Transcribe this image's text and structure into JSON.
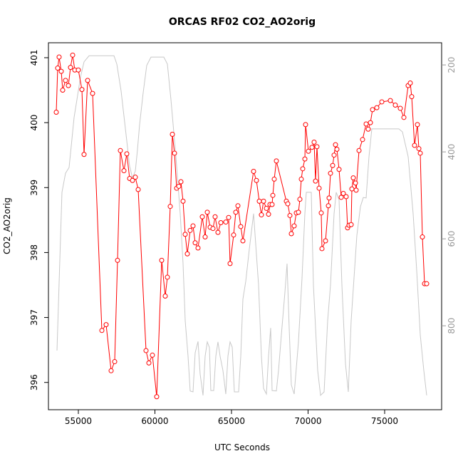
{
  "chart_data": {
    "type": "line",
    "title": "ORCAS RF02 CO2_AO2orig",
    "x_label": "UTC Seconds",
    "y_label": "CO2_AO2orig",
    "xlim": [
      53047,
      78721
    ],
    "xticks": [
      55000,
      60000,
      65000,
      70000,
      75000
    ],
    "ylim": [
      395.58,
      401.23
    ],
    "yticks": [
      396,
      397,
      398,
      399,
      400,
      401
    ],
    "y2lim": [
      993,
      149
    ],
    "y2ticks": [
      200,
      400,
      600,
      800
    ],
    "series": [
      {
        "color": "#ff0000",
        "marker": "circle",
        "x": [
          53558,
          53651,
          53744,
          53884,
          53977,
          54163,
          54349,
          54488,
          54628,
          54767,
          55000,
          55233,
          55372,
          55605,
          55930,
          56535,
          56814,
          57140,
          57372,
          57558,
          57744,
          57977,
          58163,
          58349,
          58535,
          58721,
          58907,
          59419,
          59605,
          59837,
          60116,
          60442,
          60674,
          60814,
          61000,
          61140,
          61279,
          61419,
          61558,
          61698,
          61837,
          61977,
          62116,
          62302,
          62488,
          62628,
          62814,
          63093,
          63279,
          63419,
          63605,
          63791,
          63930,
          64116,
          64302,
          64628,
          64814,
          64907,
          65140,
          65279,
          65419,
          65605,
          65744,
          66442,
          66628,
          66814,
          66953,
          67093,
          67279,
          67419,
          67512,
          67651,
          67698,
          67791,
          67930,
          68581,
          68674,
          68814,
          68907,
          69093,
          69233,
          69372,
          69465,
          69558,
          69651,
          69791,
          69837,
          70023,
          70256,
          70395,
          70488,
          70581,
          70721,
          70860,
          70907,
          71140,
          71326,
          71372,
          71465,
          71605,
          71698,
          71791,
          71884,
          72023,
          72163,
          72302,
          72488,
          72581,
          72674,
          72814,
          72860,
          72953,
          73093,
          73140,
          73326,
          73558,
          73791,
          73930,
          74070,
          74209,
          74488,
          74814,
          75372,
          75698,
          76023,
          76256,
          76535,
          76674,
          76767,
          76953,
          77140,
          77233,
          77326,
          77465,
          77605,
          77744
        ],
        "values": [
          400.16,
          400.84,
          401.01,
          400.79,
          400.5,
          400.65,
          400.57,
          400.85,
          401.04,
          400.81,
          400.81,
          400.51,
          399.51,
          400.65,
          400.45,
          396.8,
          396.89,
          396.18,
          396.32,
          397.88,
          399.57,
          399.26,
          399.52,
          399.14,
          399.11,
          399.16,
          398.97,
          396.49,
          396.3,
          396.42,
          395.78,
          397.88,
          397.33,
          397.62,
          398.71,
          399.82,
          399.53,
          398.99,
          399.02,
          399.09,
          398.79,
          398.28,
          397.98,
          398.34,
          398.41,
          398.15,
          398.07,
          398.55,
          398.24,
          398.62,
          398.39,
          398.37,
          398.55,
          398.31,
          398.46,
          398.47,
          398.54,
          397.83,
          398.27,
          398.62,
          398.72,
          398.4,
          398.18,
          399.25,
          399.11,
          398.79,
          398.58,
          398.79,
          398.68,
          398.59,
          398.74,
          398.74,
          398.88,
          399.13,
          399.41,
          398.79,
          398.75,
          398.57,
          398.29,
          398.41,
          398.61,
          398.62,
          398.82,
          399.13,
          399.29,
          399.44,
          399.97,
          399.56,
          399.62,
          399.7,
          399.1,
          399.63,
          398.99,
          398.61,
          398.06,
          398.18,
          398.72,
          398.84,
          399.22,
          399.34,
          399.5,
          399.66,
          399.59,
          399.28,
          398.85,
          398.91,
          398.86,
          398.38,
          398.42,
          398.43,
          398.98,
          399.15,
          399.07,
          398.96,
          399.57,
          399.74,
          399.98,
          399.9,
          400,
          400.2,
          400.23,
          400.32,
          400.34,
          400.27,
          400.22,
          400.08,
          400.57,
          400.61,
          400.4,
          399.65,
          399.97,
          399.6,
          399.53,
          398.24,
          397.52,
          397.52
        ]
      },
      {
        "color": "#c8c8c8",
        "axis": "y2",
        "x": [
          53605,
          53930,
          54163,
          54395,
          54535,
          54721,
          54907,
          55140,
          55372,
          55698,
          57326,
          57512,
          57791,
          58070,
          58349,
          58535,
          58721,
          58860,
          59000,
          59233,
          59465,
          59744,
          60581,
          60814,
          61047,
          61372,
          61651,
          61837,
          61977,
          62163,
          62302,
          62488,
          62628,
          62814,
          62953,
          63140,
          63279,
          63419,
          63558,
          63651,
          63837,
          63977,
          64116,
          64256,
          64442,
          64628,
          64767,
          64907,
          65047,
          65186,
          65465,
          65605,
          65744,
          65930,
          66163,
          66442,
          66767,
          66953,
          67093,
          67279,
          67419,
          67558,
          67651,
          67930,
          68070,
          68256,
          68488,
          68628,
          68767,
          68907,
          69093,
          69372,
          69605,
          69791,
          69884,
          70209,
          70349,
          70628,
          70814,
          71047,
          71279,
          71465,
          71698,
          71837,
          72023,
          72209,
          72442,
          72628,
          72814,
          73000,
          73186,
          73419,
          73605,
          73791,
          73977,
          74163,
          74349,
          75930,
          76163,
          76535,
          76860,
          77093,
          77326,
          77558,
          77744
        ],
        "values": [
          857,
          493,
          449,
          436,
          387,
          321,
          280,
          228,
          193,
          179,
          179,
          198,
          260,
          346,
          433,
          460,
          444,
          395,
          337,
          264,
          201,
          182,
          182,
          198,
          280,
          411,
          542,
          657,
          788,
          870,
          950,
          952,
          862,
          836,
          911,
          960,
          870,
          837,
          850,
          949,
          949,
          870,
          837,
          870,
          903,
          957,
          870,
          837,
          849,
          952,
          952,
          870,
          739,
          698,
          624,
          542,
          706,
          870,
          944,
          957,
          870,
          805,
          949,
          950,
          903,
          821,
          723,
          657,
          805,
          936,
          957,
          837,
          690,
          542,
          493,
          493,
          706,
          903,
          960,
          952,
          788,
          706,
          542,
          493,
          510,
          706,
          887,
          952,
          788,
          690,
          592,
          526,
          505,
          506,
          411,
          347,
          347,
          347,
          354,
          411,
          542,
          673,
          821,
          903,
          960
        ]
      }
    ]
  }
}
